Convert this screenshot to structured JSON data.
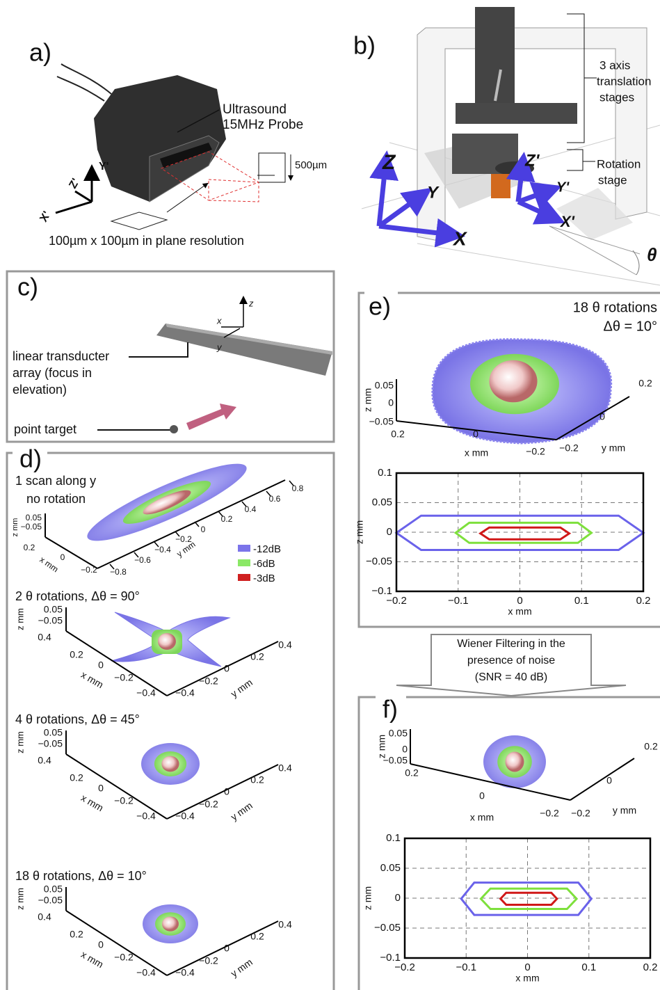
{
  "panel_a": {
    "label": "a)",
    "probe_label": [
      "Ultrasound",
      "15MHz Probe"
    ],
    "depth": "500µm",
    "resolution": "100µm x 100µm in plane resolution",
    "axes": [
      "Y'",
      "Z'",
      "X'"
    ]
  },
  "panel_b": {
    "label": "b)",
    "stages": [
      "3 axis",
      "translation",
      "stages"
    ],
    "rotation": [
      "Rotation",
      "stage"
    ],
    "axes": [
      "Z",
      "Y",
      "X",
      "Z'",
      "Y'",
      "X'",
      "θ"
    ]
  },
  "panel_c": {
    "label": "c)",
    "array_label": [
      "linear transducter",
      "array (focus in",
      "elevation)"
    ],
    "target_label": "point target",
    "axes": [
      "z",
      "x",
      "y"
    ]
  },
  "panel_d": {
    "label": "d)",
    "legend": [
      "-12dB",
      "-6dB",
      "-3dB"
    ],
    "plots": [
      {
        "title": [
          "1 scan along y",
          "no rotation"
        ],
        "z_label": "z mm",
        "x_label": "x mm",
        "y_label": "y mm",
        "z_ticks": [
          "0.05",
          "−0.05"
        ],
        "x_ticks": [
          "0.2",
          "0",
          "−0.2"
        ],
        "y_ticks": [
          "−0.8",
          "−0.6",
          "−0.4",
          "−0.2",
          "0",
          "0.2",
          "0.4",
          "0.6",
          "0.8"
        ]
      },
      {
        "title": [
          "2 θ rotations,  Δθ = 90°"
        ],
        "z_label": "z mm",
        "x_label": "x mm",
        "y_label": "y mm",
        "z_ticks": [
          "0.05",
          "−0.05"
        ],
        "x_ticks": [
          "0.4",
          "0.2",
          "0",
          "−0.2",
          "−0.4"
        ],
        "y_ticks": [
          "−0.4",
          "−0.2",
          "0",
          "0.2",
          "0.4"
        ]
      },
      {
        "title": [
          "4 θ rotations,  Δθ = 45°"
        ],
        "z_label": "z mm",
        "x_label": "x mm",
        "y_label": "y mm",
        "z_ticks": [
          "0.05",
          "−0.05"
        ],
        "x_ticks": [
          "0.4",
          "0.2",
          "0",
          "−0.2",
          "−0.4"
        ],
        "y_ticks": [
          "−0.4",
          "−0.2",
          "0",
          "0.2",
          "0.4"
        ]
      },
      {
        "title": [
          "18 θ rotations,  Δθ = 10°"
        ],
        "z_label": "z mm",
        "x_label": "x mm",
        "y_label": "y mm",
        "z_ticks": [
          "0.05",
          "−0.05"
        ],
        "x_ticks": [
          "0.4",
          "0.2",
          "0",
          "−0.2",
          "−0.4"
        ],
        "y_ticks": [
          "−0.4",
          "−0.2",
          "0",
          "0.2",
          "0.4"
        ]
      }
    ]
  },
  "panel_e": {
    "label": "e)",
    "title": [
      "18 θ rotations",
      "Δθ = 10°"
    ],
    "surface": {
      "z_label": "z mm",
      "x_label": "x mm",
      "y_label": "y mm",
      "z_ticks": [
        "0.05",
        "0",
        "−0.05"
      ],
      "x_ticks": [
        "0.2",
        "0",
        "−0.2"
      ],
      "y_ticks": [
        "−0.2",
        "0",
        "0.2"
      ]
    },
    "contour": {
      "x_label": "x mm",
      "y_label": "z mm",
      "x_ticks": [
        "−0.2",
        "−0.1",
        "0",
        "0.1",
        "0.2"
      ],
      "y_ticks": [
        "0.1",
        "0.05",
        "0",
        "−0.05",
        "−0.1"
      ]
    }
  },
  "filter_step": [
    "Wiener Filtering in the",
    "presence of noise",
    "(SNR = 40 dB)"
  ],
  "panel_f": {
    "label": "f)",
    "surface": {
      "z_label": "z mm",
      "x_label": "x mm",
      "y_label": "y mm",
      "z_ticks": [
        "0.05",
        "0",
        "−0.05"
      ],
      "x_ticks": [
        "0.2",
        "0",
        "−0.2"
      ],
      "y_ticks": [
        "−0.2",
        "0",
        "0.2"
      ]
    },
    "contour": {
      "x_label": "x mm",
      "y_label": "z mm",
      "x_ticks": [
        "−0.2",
        "−0.1",
        "0",
        "0.1",
        "0.2"
      ],
      "y_ticks": [
        "0.1",
        "0.05",
        "0",
        "−0.05",
        "−0.1"
      ]
    }
  }
}
